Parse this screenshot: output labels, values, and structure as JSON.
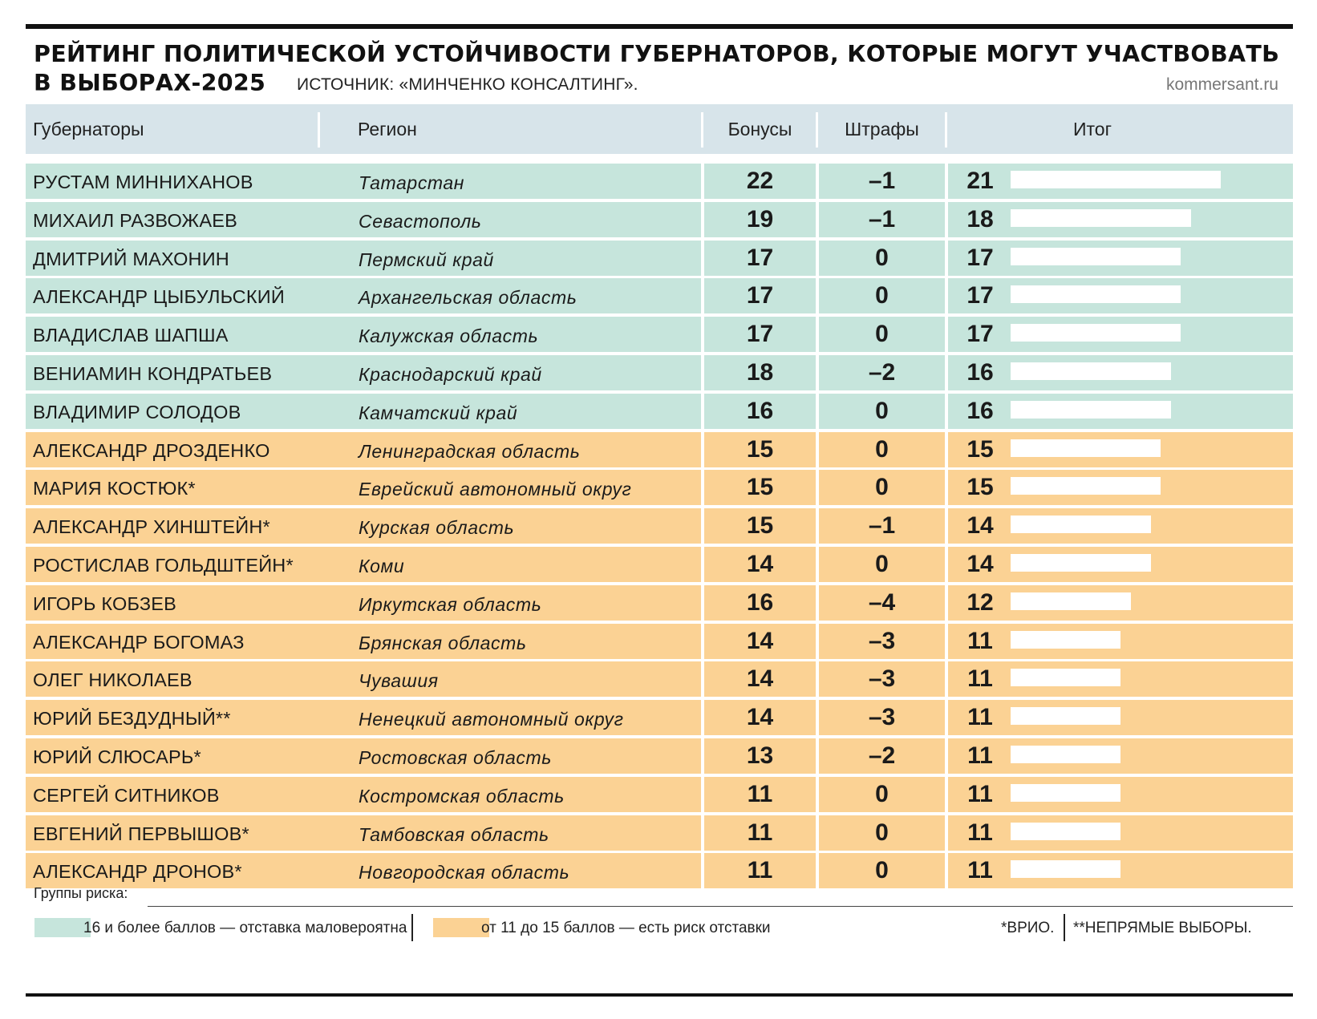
{
  "header": {
    "title_line1": "РЕЙТИНГ ПОЛИТИЧЕСКОЙ УСТОЙЧИВОСТИ ГУБЕРНАТОРОВ, КОТОРЫЕ МОГУТ УЧАСТВОВАТЬ",
    "title_line2": "В ВЫБОРАХ-2025",
    "source": "ИСТОЧНИК: «МИНЧЕНКО КОНСАЛТИНГ».",
    "site": "kommersant.ru"
  },
  "colors": {
    "green": "#c6e5dc",
    "orange": "#fbd294",
    "header": "#d7e4ea"
  },
  "chart_data": {
    "type": "table",
    "columns": [
      "Губернаторы",
      "Регион",
      "Бонусы",
      "Штрафы",
      "Итог"
    ],
    "rows": [
      {
        "name": "РУСТАМ МИННИХАНОВ",
        "region": "Татарстан",
        "bonus": "22",
        "penalty": "–1",
        "total": "21",
        "total_value": 21,
        "group": "green"
      },
      {
        "name": "МИХАИЛ РАЗВОЖАЕВ",
        "region": "Севастополь",
        "bonus": "19",
        "penalty": "–1",
        "total": "18",
        "total_value": 18,
        "group": "green"
      },
      {
        "name": "ДМИТРИЙ МАХОНИН",
        "region": "Пермский край",
        "bonus": "17",
        "penalty": "0",
        "total": "17",
        "total_value": 17,
        "group": "green"
      },
      {
        "name": "АЛЕКСАНДР ЦЫБУЛЬСКИЙ",
        "region": "Архангельская область",
        "bonus": "17",
        "penalty": "0",
        "total": "17",
        "total_value": 17,
        "group": "green"
      },
      {
        "name": "ВЛАДИСЛАВ ШАПША",
        "region": "Калужская область",
        "bonus": "17",
        "penalty": "0",
        "total": "17",
        "total_value": 17,
        "group": "green"
      },
      {
        "name": "ВЕНИАМИН КОНДРАТЬЕВ",
        "region": "Краснодарский край",
        "bonus": "18",
        "penalty": "–2",
        "total": "16",
        "total_value": 16,
        "group": "green"
      },
      {
        "name": "ВЛАДИМИР СОЛОДОВ",
        "region": "Камчатский край",
        "bonus": "16",
        "penalty": "0",
        "total": "16",
        "total_value": 16,
        "group": "green"
      },
      {
        "name": "АЛЕКСАНДР ДРОЗДЕНКО",
        "region": "Ленинградская область",
        "bonus": "15",
        "penalty": "0",
        "total": "15",
        "total_value": 15,
        "group": "orange"
      },
      {
        "name": "МАРИЯ КОСТЮК*",
        "region": "Еврейский автономный округ",
        "bonus": "15",
        "penalty": "0",
        "total": "15",
        "total_value": 15,
        "group": "orange"
      },
      {
        "name": "АЛЕКСАНДР ХИНШТЕЙН*",
        "region": "Курская область",
        "bonus": "15",
        "penalty": "–1",
        "total": "14",
        "total_value": 14,
        "group": "orange"
      },
      {
        "name": "РОСТИСЛАВ ГОЛЬДШТЕЙН*",
        "region": "Коми",
        "bonus": "14",
        "penalty": "0",
        "total": "14",
        "total_value": 14,
        "group": "orange"
      },
      {
        "name": "ИГОРЬ КОБЗЕВ",
        "region": "Иркутская область",
        "bonus": "16",
        "penalty": "–4",
        "total": "12",
        "total_value": 12,
        "group": "orange"
      },
      {
        "name": "АЛЕКСАНДР БОГОМАЗ",
        "region": "Брянская область",
        "bonus": "14",
        "penalty": "–3",
        "total": "11",
        "total_value": 11,
        "group": "orange"
      },
      {
        "name": "ОЛЕГ НИКОЛАЕВ",
        "region": "Чувашия",
        "bonus": "14",
        "penalty": "–3",
        "total": "11",
        "total_value": 11,
        "group": "orange"
      },
      {
        "name": "ЮРИЙ БЕЗДУДНЫЙ**",
        "region": "Ненецкий автономный округ",
        "bonus": "14",
        "penalty": "–3",
        "total": "11",
        "total_value": 11,
        "group": "orange"
      },
      {
        "name": "ЮРИЙ СЛЮСАРЬ*",
        "region": "Ростовская область",
        "bonus": "13",
        "penalty": "–2",
        "total": "11",
        "total_value": 11,
        "group": "orange"
      },
      {
        "name": "СЕРГЕЙ СИТНИКОВ",
        "region": "Костромская область",
        "bonus": "11",
        "penalty": "0",
        "total": "11",
        "total_value": 11,
        "group": "orange"
      },
      {
        "name": "ЕВГЕНИЙ ПЕРВЫШОВ*",
        "region": "Тамбовская область",
        "bonus": "11",
        "penalty": "0",
        "total": "11",
        "total_value": 11,
        "group": "orange"
      },
      {
        "name": "АЛЕКСАНДР ДРОНОВ*",
        "region": "Новгородская область",
        "bonus": "11",
        "penalty": "0",
        "total": "11",
        "total_value": 11,
        "group": "orange"
      }
    ],
    "total_max": 21
  },
  "legend": {
    "label": "Группы риска:",
    "green_text": "16 и более баллов — отставка маловероятна",
    "orange_text": "от 11 до 15 баллов — есть риск отставки",
    "note1": "*ВРИО.",
    "note2": "**НЕПРЯМЫЕ ВЫБОРЫ."
  }
}
